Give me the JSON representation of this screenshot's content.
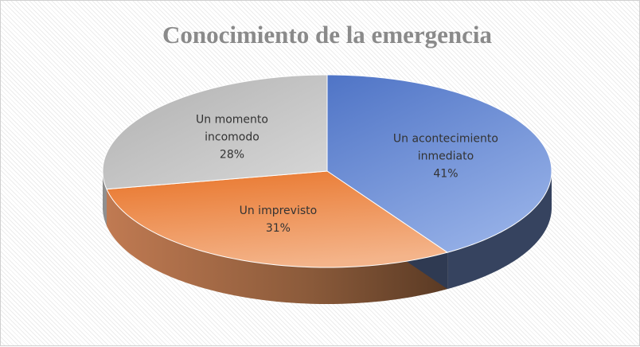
{
  "chart_data": {
    "type": "pie",
    "title": "Conocimiento de la emergencia",
    "categories": [
      "Un acontecimiento inmediato",
      "Un imprevisto",
      "Un momento incomodo"
    ],
    "values": [
      41,
      31,
      28
    ],
    "value_labels": [
      "41%",
      "31%",
      "28%"
    ],
    "colors": [
      "#6f8fd0",
      "#ed8a4a",
      "#c4c4c4"
    ]
  }
}
